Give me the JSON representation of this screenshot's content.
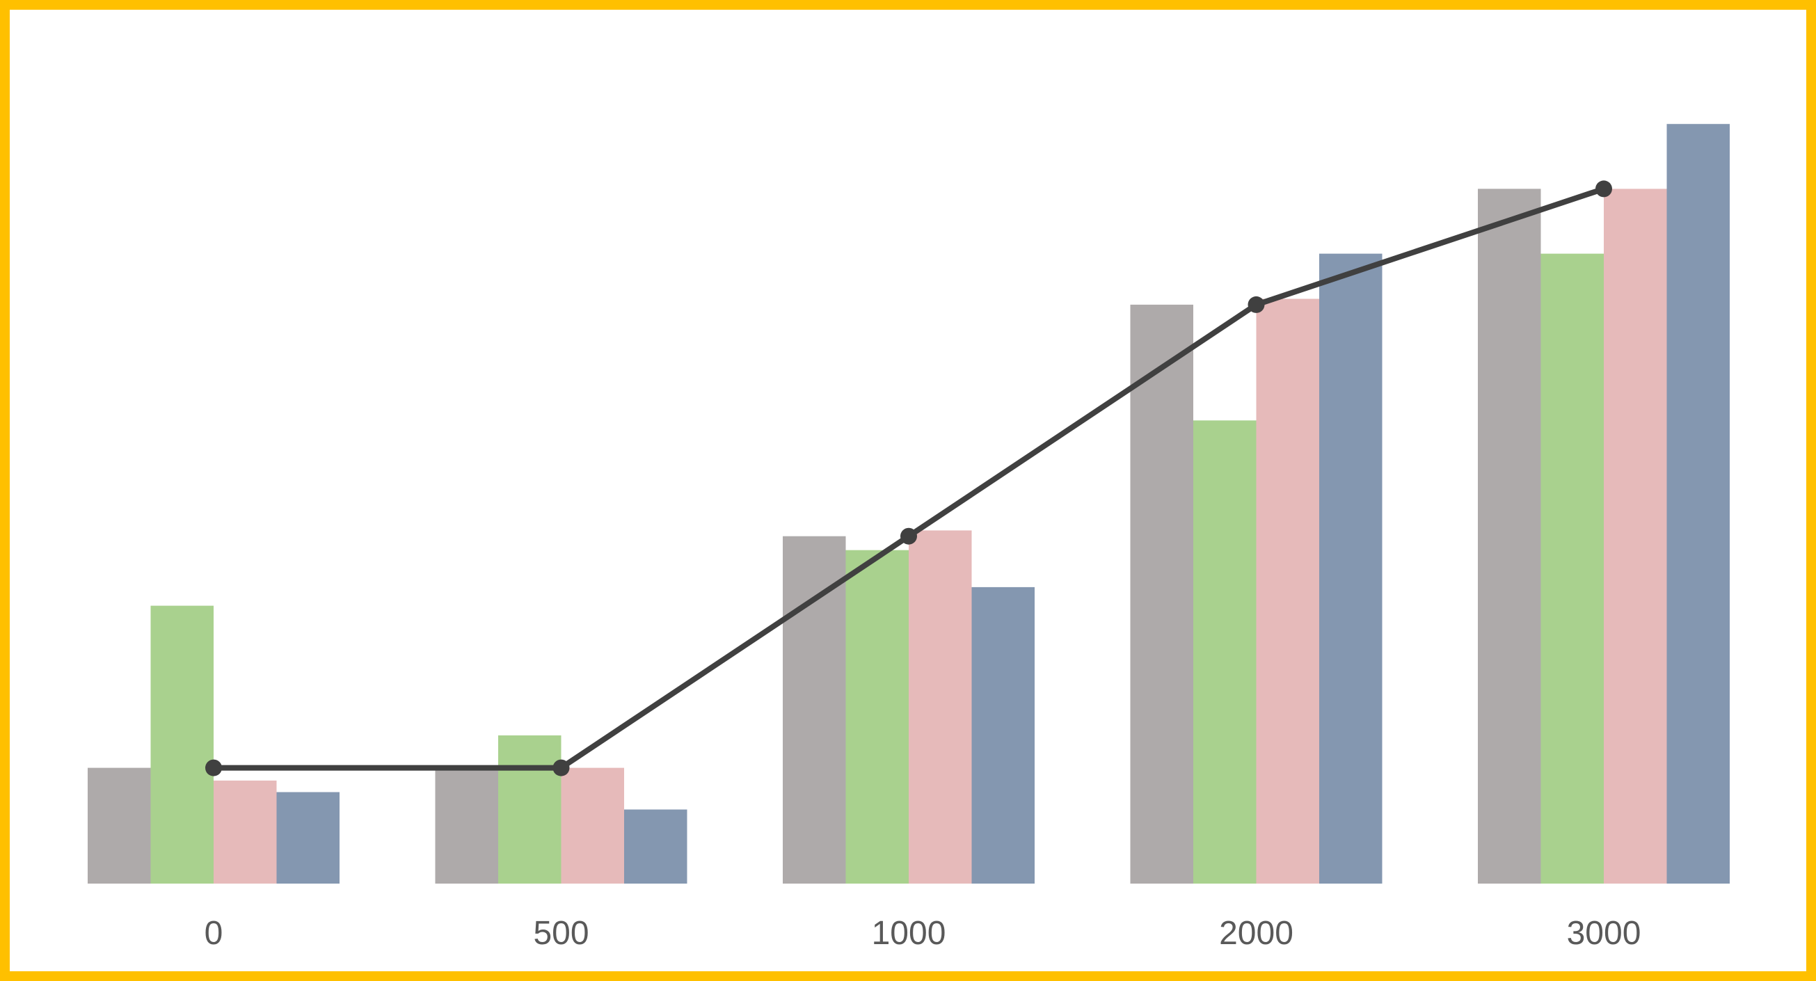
{
  "chart_data": {
    "type": "bar",
    "categories": [
      "0",
      "500",
      "1000",
      "2000",
      "3000"
    ],
    "series": [
      {
        "color": "#aeaaaa",
        "values": [
          10,
          10,
          30,
          50,
          60
        ]
      },
      {
        "color": "#a9d18e",
        "values": [
          24,
          12.8,
          28.8,
          40,
          54.4
        ]
      },
      {
        "color": "#e6baba",
        "values": [
          8.9,
          10,
          30.5,
          50.5,
          60
        ]
      },
      {
        "color": "#8497b0",
        "values": [
          7.9,
          6.4,
          25.6,
          54.4,
          65.6
        ]
      }
    ],
    "line": {
      "color": "#404040",
      "values": [
        10,
        10,
        30,
        50,
        60
      ]
    },
    "ylim": [
      0,
      70
    ],
    "grid": false,
    "legend": "none"
  }
}
